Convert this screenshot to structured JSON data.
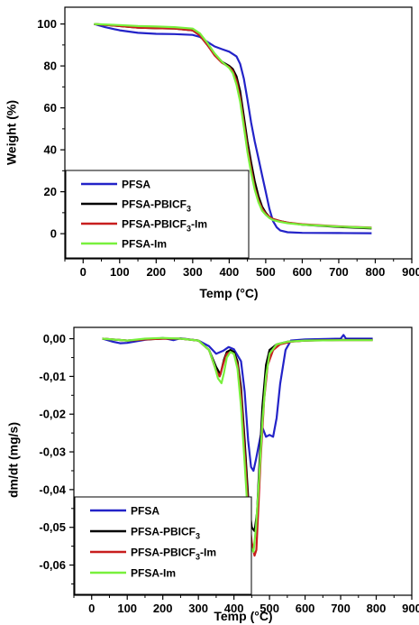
{
  "chart_data": [
    {
      "type": "line",
      "xlabel": "Temp (°C)",
      "ylabel": "Weight (%)",
      "xlim": [
        -50,
        900
      ],
      "ylim": [
        -12,
        108
      ],
      "xticks": [
        0,
        100,
        200,
        300,
        400,
        500,
        600,
        700,
        800,
        900
      ],
      "xtick_labels": [
        "0",
        "100",
        "200",
        "300",
        "400",
        "500",
        "600",
        "700",
        "800",
        "900"
      ],
      "yticks": [
        0,
        20,
        40,
        60,
        80,
        100
      ],
      "ytick_labels": [
        "0",
        "20",
        "40",
        "60",
        "80",
        "100"
      ],
      "grid": false,
      "legend_position": "bottom-left",
      "series": [
        {
          "name": "PFSA",
          "color": "#2323c8",
          "x": [
            30,
            60,
            100,
            150,
            200,
            250,
            300,
            320,
            340,
            360,
            380,
            400,
            420,
            430,
            440,
            450,
            460,
            470,
            480,
            490,
            500,
            510,
            520,
            530,
            540,
            560,
            600,
            700,
            790
          ],
          "y": [
            100,
            98.5,
            97,
            95.8,
            95.3,
            95.2,
            94.8,
            93.8,
            91.5,
            89.3,
            88,
            86.8,
            84.5,
            81,
            74,
            64,
            53,
            44,
            36,
            28,
            20,
            12,
            6,
            3,
            1.5,
            0.7,
            0.4,
            0.3,
            0.2
          ]
        },
        {
          "name": "PFSA-PBICF3",
          "color": "#000000",
          "x": [
            30,
            100,
            150,
            200,
            250,
            300,
            320,
            340,
            360,
            380,
            400,
            410,
            420,
            430,
            440,
            450,
            460,
            470,
            480,
            490,
            500,
            510,
            520,
            540,
            560,
            600,
            700,
            790
          ],
          "y": [
            100,
            99,
            98.3,
            98,
            97.8,
            97,
            94.5,
            90,
            85.5,
            82,
            80,
            78.5,
            75,
            68,
            56,
            44,
            34,
            25,
            18,
            13,
            10,
            8,
            7,
            6,
            5.3,
            4.3,
            3.2,
            2.5
          ]
        },
        {
          "name": "PFSA-PBICF3-Im",
          "color": "#c81e1e",
          "x": [
            30,
            100,
            150,
            200,
            250,
            300,
            320,
            340,
            360,
            380,
            400,
            410,
            420,
            430,
            440,
            450,
            460,
            470,
            480,
            490,
            500,
            510,
            520,
            540,
            560,
            600,
            700,
            790
          ],
          "y": [
            100,
            99,
            98.3,
            98,
            97.8,
            97,
            94.5,
            90,
            85,
            81.5,
            79.5,
            77.5,
            73,
            65,
            53,
            41,
            31,
            22,
            16,
            12,
            9.5,
            8,
            7,
            6,
            5.3,
            4.5,
            3.5,
            2.9
          ]
        },
        {
          "name": "PFSA-Im",
          "color": "#78f03c",
          "x": [
            30,
            100,
            150,
            200,
            250,
            300,
            320,
            340,
            360,
            380,
            400,
            410,
            420,
            430,
            440,
            450,
            460,
            470,
            480,
            490,
            500,
            510,
            520,
            540,
            560,
            600,
            700,
            790
          ],
          "y": [
            100,
            99.5,
            99,
            98.8,
            98.5,
            97.8,
            95.5,
            91,
            86,
            82,
            79,
            76.5,
            71,
            63,
            51,
            39,
            29,
            21,
            15,
            11,
            9,
            7.5,
            6.5,
            5.6,
            5,
            4.3,
            3.4,
            2.8
          ]
        }
      ]
    },
    {
      "type": "line",
      "xlabel": "Temp (°C)",
      "ylabel": "dm/dt (mg/s)",
      "xlim": [
        -50,
        900
      ],
      "ylim": [
        -0.068,
        0.003
      ],
      "xticks": [
        0,
        100,
        200,
        300,
        400,
        500,
        600,
        700,
        800,
        900
      ],
      "xtick_labels": [
        "0",
        "100",
        "200",
        "300",
        "400",
        "500",
        "600",
        "700",
        "800",
        "900"
      ],
      "yticks": [
        0,
        -0.01,
        -0.02,
        -0.03,
        -0.04,
        -0.05,
        -0.06
      ],
      "ytick_labels": [
        "0,00",
        "-0,01",
        "-0,02",
        "-0,03",
        "-0,04",
        "-0,05",
        "-0,06"
      ],
      "grid": false,
      "legend_position": "bottom-left",
      "series": [
        {
          "name": "PFSA",
          "color": "#2323c8",
          "x": [
            30,
            60,
            80,
            100,
            150,
            200,
            230,
            250,
            300,
            330,
            350,
            370,
            385,
            400,
            420,
            430,
            440,
            448,
            455,
            462,
            470,
            480,
            490,
            500,
            510,
            520,
            530,
            545,
            560,
            600,
            700,
            708,
            715,
            790
          ],
          "y": [
            0,
            -0.0008,
            -0.0012,
            -0.0011,
            -0.0003,
            0.0002,
            -0.0004,
            0.0001,
            -0.0005,
            -0.002,
            -0.004,
            -0.0032,
            -0.0022,
            -0.0028,
            -0.006,
            -0.014,
            -0.027,
            -0.034,
            -0.035,
            -0.032,
            -0.028,
            -0.0235,
            -0.026,
            -0.0255,
            -0.026,
            -0.021,
            -0.012,
            -0.003,
            -0.0005,
            -0.0002,
            0,
            0.001,
            0,
            0
          ]
        },
        {
          "name": "PFSA-PBICF3",
          "color": "#000000",
          "x": [
            30,
            100,
            150,
            200,
            250,
            300,
            330,
            350,
            362,
            372,
            380,
            390,
            400,
            410,
            420,
            430,
            440,
            450,
            458,
            465,
            470,
            480,
            490,
            500,
            520,
            550,
            600,
            700,
            790
          ],
          "y": [
            0,
            -0.0005,
            -0.0002,
            0,
            0,
            -0.0005,
            -0.003,
            -0.0075,
            -0.0095,
            -0.0055,
            -0.0035,
            -0.003,
            -0.0035,
            -0.006,
            -0.013,
            -0.027,
            -0.042,
            -0.05,
            -0.051,
            -0.046,
            -0.036,
            -0.018,
            -0.007,
            -0.003,
            -0.0015,
            -0.0008,
            -0.0005,
            -0.0003,
            -0.0003
          ]
        },
        {
          "name": "PFSA-PBICF3-Im",
          "color": "#c81e1e",
          "x": [
            30,
            100,
            150,
            200,
            250,
            300,
            330,
            350,
            360,
            372,
            380,
            390,
            400,
            410,
            420,
            430,
            440,
            450,
            458,
            463,
            468,
            475,
            485,
            495,
            510,
            530,
            560,
            600,
            700,
            790
          ],
          "y": [
            0,
            -0.0005,
            -0.0002,
            0,
            0,
            -0.0005,
            -0.003,
            -0.0085,
            -0.01,
            -0.006,
            -0.004,
            -0.0035,
            -0.004,
            -0.007,
            -0.015,
            -0.03,
            -0.045,
            -0.054,
            -0.0575,
            -0.056,
            -0.046,
            -0.032,
            -0.016,
            -0.007,
            -0.003,
            -0.0015,
            -0.0008,
            -0.0005,
            -0.0004,
            -0.0004
          ]
        },
        {
          "name": "PFSA-Im",
          "color": "#78f03c",
          "x": [
            30,
            100,
            150,
            200,
            250,
            300,
            330,
            345,
            355,
            365,
            372,
            380,
            390,
            400,
            410,
            420,
            430,
            440,
            448,
            455,
            462,
            470,
            480,
            490,
            500,
            520,
            550,
            600,
            700,
            790
          ],
          "y": [
            0,
            -0.0005,
            0,
            0.0002,
            0,
            -0.0005,
            -0.003,
            -0.007,
            -0.0105,
            -0.0118,
            -0.009,
            -0.005,
            -0.0035,
            -0.004,
            -0.008,
            -0.018,
            -0.033,
            -0.048,
            -0.0555,
            -0.0565,
            -0.05,
            -0.038,
            -0.022,
            -0.01,
            -0.004,
            -0.0015,
            -0.0008,
            -0.0005,
            -0.0004,
            -0.0004
          ]
        }
      ]
    }
  ],
  "legend_labels": [
    {
      "pre": "PFSA",
      "sub": "",
      "post": ""
    },
    {
      "pre": "PFSA-PBICF",
      "sub": "3",
      "post": ""
    },
    {
      "pre": "PFSA-PBICF",
      "sub": "3",
      "post": "-Im"
    },
    {
      "pre": "PFSA-Im",
      "sub": "",
      "post": ""
    }
  ]
}
